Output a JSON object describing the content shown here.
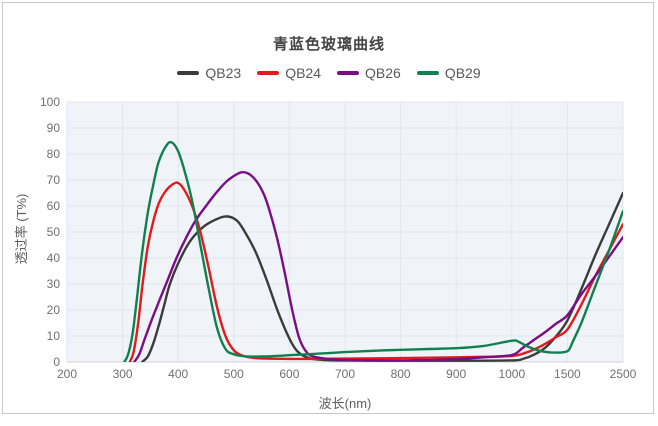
{
  "card": {
    "border_color": "#c7c7c7",
    "background": "#ffffff"
  },
  "plot": {
    "background": "#f0f4f8",
    "grid_color": "#dfe6ec",
    "axis_line_color": "#ccd3d9"
  },
  "chart_data": {
    "type": "line",
    "title": "青蓝色玻璃曲线",
    "xlabel": "波长(nm)",
    "ylabel": "透过率 (T%)",
    "x_axis_type": "category-equal-spacing",
    "x_ticks": [
      200,
      300,
      400,
      500,
      600,
      700,
      800,
      900,
      1000,
      1500,
      2500
    ],
    "ylim": [
      0,
      100
    ],
    "y_tick_step": 10,
    "grid": true,
    "legend_position": "top-center",
    "series": [
      {
        "name": "QB23",
        "color": "#3b3b3b",
        "points": [
          [
            335,
            0
          ],
          [
            345,
            2
          ],
          [
            355,
            7
          ],
          [
            365,
            14
          ],
          [
            375,
            22
          ],
          [
            385,
            30
          ],
          [
            400,
            38
          ],
          [
            420,
            46
          ],
          [
            440,
            51
          ],
          [
            460,
            54
          ],
          [
            485,
            56
          ],
          [
            505,
            54.5
          ],
          [
            520,
            50
          ],
          [
            540,
            42
          ],
          [
            560,
            31
          ],
          [
            580,
            19
          ],
          [
            600,
            9
          ],
          [
            615,
            4
          ],
          [
            635,
            1.5
          ],
          [
            660,
            0.8
          ],
          [
            700,
            0.6
          ],
          [
            800,
            0.5
          ],
          [
            900,
            0.5
          ],
          [
            1000,
            0.6
          ],
          [
            1100,
            1.2
          ],
          [
            1200,
            2.8
          ],
          [
            1300,
            5.5
          ],
          [
            1400,
            10
          ],
          [
            1500,
            16
          ],
          [
            1750,
            28
          ],
          [
            2000,
            41
          ],
          [
            2250,
            53
          ],
          [
            2500,
            65
          ]
        ]
      },
      {
        "name": "QB24",
        "color": "#e01b1b",
        "points": [
          [
            313,
            0
          ],
          [
            320,
            4
          ],
          [
            328,
            15
          ],
          [
            336,
            30
          ],
          [
            345,
            44
          ],
          [
            355,
            54
          ],
          [
            365,
            61
          ],
          [
            375,
            65
          ],
          [
            385,
            67.5
          ],
          [
            398,
            69
          ],
          [
            410,
            66.5
          ],
          [
            425,
            60
          ],
          [
            440,
            50
          ],
          [
            455,
            36
          ],
          [
            470,
            21
          ],
          [
            485,
            10
          ],
          [
            500,
            4.5
          ],
          [
            515,
            2.5
          ],
          [
            535,
            1.6
          ],
          [
            560,
            1.3
          ],
          [
            600,
            1.2
          ],
          [
            650,
            1.2
          ],
          [
            700,
            1.3
          ],
          [
            800,
            1.5
          ],
          [
            900,
            1.8
          ],
          [
            950,
            2
          ],
          [
            1000,
            2.3
          ],
          [
            1100,
            3.2
          ],
          [
            1200,
            4.8
          ],
          [
            1300,
            7
          ],
          [
            1400,
            9.6
          ],
          [
            1500,
            12.5
          ],
          [
            1750,
            22
          ],
          [
            2000,
            33
          ],
          [
            2250,
            43
          ],
          [
            2500,
            53
          ]
        ]
      },
      {
        "name": "QB26",
        "color": "#7a0d86",
        "points": [
          [
            321,
            0
          ],
          [
            330,
            3
          ],
          [
            340,
            9
          ],
          [
            352,
            16
          ],
          [
            365,
            23
          ],
          [
            380,
            31
          ],
          [
            395,
            39
          ],
          [
            410,
            46
          ],
          [
            430,
            54
          ],
          [
            450,
            60
          ],
          [
            470,
            65.5
          ],
          [
            490,
            70
          ],
          [
            515,
            73
          ],
          [
            535,
            71
          ],
          [
            555,
            64
          ],
          [
            575,
            50
          ],
          [
            590,
            36
          ],
          [
            605,
            20
          ],
          [
            618,
            9
          ],
          [
            632,
            3.5
          ],
          [
            645,
            2
          ],
          [
            670,
            1.2
          ],
          [
            700,
            0.8
          ],
          [
            750,
            0.6
          ],
          [
            800,
            0.6
          ],
          [
            850,
            0.8
          ],
          [
            900,
            1.1
          ],
          [
            950,
            1.8
          ],
          [
            1000,
            2.7
          ],
          [
            1100,
            5.5
          ],
          [
            1200,
            8.5
          ],
          [
            1300,
            11.5
          ],
          [
            1400,
            14.8
          ],
          [
            1500,
            18
          ],
          [
            1750,
            26
          ],
          [
            2000,
            33
          ],
          [
            2250,
            40.5
          ],
          [
            2500,
            48
          ]
        ]
      },
      {
        "name": "QB29",
        "color": "#10804f",
        "points": [
          [
            303,
            0
          ],
          [
            310,
            3
          ],
          [
            318,
            11
          ],
          [
            326,
            25
          ],
          [
            335,
            42
          ],
          [
            345,
            57
          ],
          [
            355,
            68
          ],
          [
            365,
            77
          ],
          [
            378,
            83
          ],
          [
            388,
            84.5
          ],
          [
            400,
            81
          ],
          [
            412,
            73
          ],
          [
            425,
            62
          ],
          [
            440,
            45
          ],
          [
            455,
            28
          ],
          [
            470,
            13
          ],
          [
            485,
            5
          ],
          [
            500,
            3
          ],
          [
            520,
            2.2
          ],
          [
            550,
            2.1
          ],
          [
            600,
            2.6
          ],
          [
            650,
            3.2
          ],
          [
            700,
            3.8
          ],
          [
            750,
            4.3
          ],
          [
            800,
            4.7
          ],
          [
            850,
            5
          ],
          [
            900,
            5.3
          ],
          [
            950,
            6.2
          ],
          [
            1000,
            8.2
          ],
          [
            1060,
            7.8
          ],
          [
            1150,
            5.8
          ],
          [
            1250,
            4.3
          ],
          [
            1350,
            3.7
          ],
          [
            1450,
            3.7
          ],
          [
            1520,
            4.5
          ],
          [
            1600,
            8
          ],
          [
            1750,
            15
          ],
          [
            2000,
            29
          ],
          [
            2250,
            43
          ],
          [
            2500,
            58
          ]
        ]
      }
    ]
  }
}
